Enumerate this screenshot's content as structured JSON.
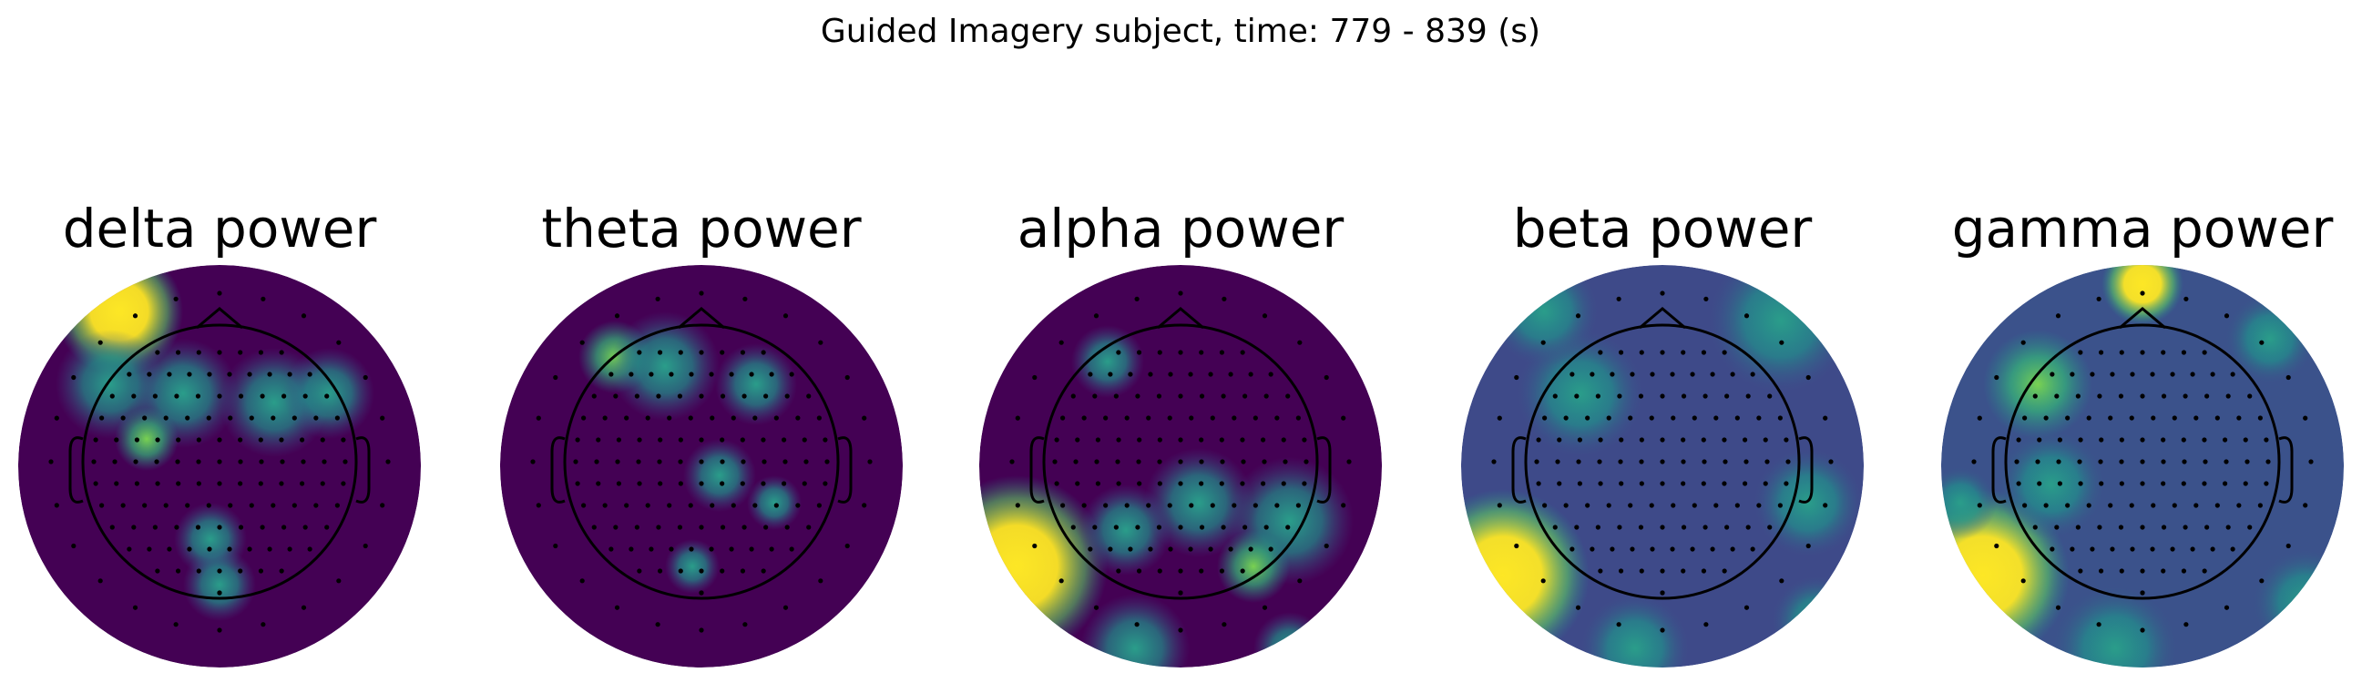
{
  "title": "Guided Imagery subject, time: 779 - 839 (s)",
  "panels": [
    {
      "title": "delta power"
    },
    {
      "title": "theta power"
    },
    {
      "title": "alpha power"
    },
    {
      "title": "beta power"
    },
    {
      "title": "gamma power"
    }
  ]
}
